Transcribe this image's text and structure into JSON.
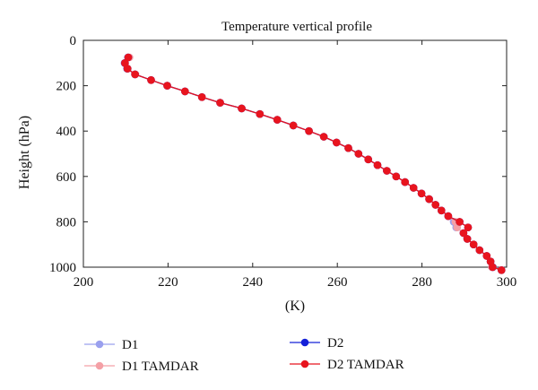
{
  "chart_data": {
    "type": "line",
    "title": "Temperature vertical profile",
    "xlabel": "(K)",
    "ylabel": "Height (hPa)",
    "xlim": [
      200,
      300
    ],
    "ylim": [
      0,
      1000
    ],
    "y_inverted": true,
    "xticks": [
      200,
      220,
      240,
      260,
      280,
      300
    ],
    "yticks": [
      0,
      200,
      400,
      600,
      800,
      1000
    ],
    "grid": false,
    "legend_position": "below",
    "series": [
      {
        "name": "D1",
        "color": "#9aa0ee",
        "marker": "circle",
        "points": [
          [
            210.5,
            75
          ],
          [
            209.7,
            100
          ],
          [
            210.3,
            125
          ],
          [
            212.2,
            150
          ],
          [
            216.0,
            175
          ],
          [
            219.8,
            200
          ],
          [
            224.0,
            225
          ],
          [
            228.0,
            250
          ],
          [
            232.3,
            275
          ],
          [
            237.4,
            300
          ],
          [
            241.7,
            325
          ],
          [
            245.8,
            350
          ],
          [
            249.6,
            375
          ],
          [
            253.3,
            400
          ],
          [
            256.8,
            425
          ],
          [
            259.8,
            450
          ],
          [
            262.6,
            475
          ],
          [
            265.0,
            500
          ],
          [
            267.3,
            525
          ],
          [
            269.5,
            550
          ],
          [
            271.7,
            575
          ],
          [
            273.9,
            600
          ],
          [
            276.0,
            625
          ],
          [
            278.0,
            650
          ],
          [
            279.9,
            675
          ],
          [
            281.7,
            700
          ],
          [
            283.2,
            725
          ],
          [
            284.6,
            750
          ],
          [
            286.2,
            775
          ],
          [
            287.5,
            800
          ],
          [
            288.1,
            825
          ],
          [
            289.8,
            850
          ],
          [
            290.7,
            875
          ],
          [
            292.2,
            900
          ],
          [
            293.6,
            925
          ],
          [
            295.3,
            950
          ],
          [
            296.2,
            975
          ],
          [
            296.8,
            1000
          ],
          [
            298.8,
            1013
          ]
        ]
      },
      {
        "name": "D1 TAMDAR",
        "color": "#f4a0a6",
        "marker": "circle",
        "points": [
          [
            210.9,
            75
          ],
          [
            209.9,
            100
          ],
          [
            210.5,
            125
          ],
          [
            212.3,
            150
          ],
          [
            216.0,
            175
          ],
          [
            219.8,
            200
          ],
          [
            224.0,
            225
          ],
          [
            228.0,
            250
          ],
          [
            232.3,
            275
          ],
          [
            237.4,
            300
          ],
          [
            241.7,
            325
          ],
          [
            245.8,
            350
          ],
          [
            249.6,
            375
          ],
          [
            253.3,
            400
          ],
          [
            256.8,
            425
          ],
          [
            259.8,
            450
          ],
          [
            262.6,
            475
          ],
          [
            265.0,
            500
          ],
          [
            267.3,
            525
          ],
          [
            269.5,
            550
          ],
          [
            271.7,
            575
          ],
          [
            273.9,
            600
          ],
          [
            276.0,
            625
          ],
          [
            278.0,
            650
          ],
          [
            279.9,
            675
          ],
          [
            281.7,
            700
          ],
          [
            283.2,
            725
          ],
          [
            284.6,
            750
          ],
          [
            286.2,
            775
          ],
          [
            287.9,
            800
          ],
          [
            288.3,
            825
          ],
          [
            289.8,
            850
          ],
          [
            290.7,
            875
          ],
          [
            292.2,
            900
          ],
          [
            293.6,
            925
          ],
          [
            295.3,
            950
          ],
          [
            296.2,
            975
          ],
          [
            296.5,
            1000
          ],
          [
            298.8,
            1013
          ]
        ]
      },
      {
        "name": "D2",
        "color": "#1420d8",
        "marker": "circle",
        "points": [
          [
            210.6,
            75
          ],
          [
            209.8,
            100
          ],
          [
            210.4,
            125
          ],
          [
            212.2,
            150
          ],
          [
            216.0,
            175
          ],
          [
            219.8,
            200
          ],
          [
            224.0,
            225
          ],
          [
            228.0,
            250
          ],
          [
            232.3,
            275
          ],
          [
            237.4,
            300
          ],
          [
            241.7,
            325
          ],
          [
            245.8,
            350
          ],
          [
            249.6,
            375
          ],
          [
            253.3,
            400
          ],
          [
            256.8,
            425
          ],
          [
            259.8,
            450
          ],
          [
            262.6,
            475
          ],
          [
            265.0,
            500
          ],
          [
            267.3,
            525
          ],
          [
            269.5,
            550
          ],
          [
            271.7,
            575
          ],
          [
            273.9,
            600
          ],
          [
            276.0,
            625
          ],
          [
            278.0,
            650
          ],
          [
            279.9,
            675
          ],
          [
            281.7,
            700
          ],
          [
            283.2,
            725
          ],
          [
            284.6,
            750
          ],
          [
            286.2,
            775
          ],
          [
            288.9,
            800
          ],
          [
            290.9,
            825
          ],
          [
            289.8,
            850
          ],
          [
            290.7,
            875
          ],
          [
            292.2,
            900
          ],
          [
            293.6,
            925
          ],
          [
            295.3,
            950
          ],
          [
            296.2,
            975
          ],
          [
            296.7,
            1000
          ],
          [
            298.8,
            1013
          ]
        ]
      },
      {
        "name": "D2 TAMDAR",
        "color": "#e8141e",
        "marker": "circle",
        "points": [
          [
            210.6,
            75
          ],
          [
            209.8,
            100
          ],
          [
            210.4,
            125
          ],
          [
            212.2,
            150
          ],
          [
            216.0,
            175
          ],
          [
            219.8,
            200
          ],
          [
            224.0,
            225
          ],
          [
            228.0,
            250
          ],
          [
            232.3,
            275
          ],
          [
            237.4,
            300
          ],
          [
            241.7,
            325
          ],
          [
            245.8,
            350
          ],
          [
            249.6,
            375
          ],
          [
            253.3,
            400
          ],
          [
            256.8,
            425
          ],
          [
            259.8,
            450
          ],
          [
            262.6,
            475
          ],
          [
            265.0,
            500
          ],
          [
            267.3,
            525
          ],
          [
            269.5,
            550
          ],
          [
            271.7,
            575
          ],
          [
            273.9,
            600
          ],
          [
            276.0,
            625
          ],
          [
            278.0,
            650
          ],
          [
            279.9,
            675
          ],
          [
            281.7,
            700
          ],
          [
            283.2,
            725
          ],
          [
            284.6,
            750
          ],
          [
            286.2,
            775
          ],
          [
            288.9,
            800
          ],
          [
            290.9,
            825
          ],
          [
            289.8,
            850
          ],
          [
            290.7,
            875
          ],
          [
            292.2,
            900
          ],
          [
            293.6,
            925
          ],
          [
            295.3,
            950
          ],
          [
            296.2,
            975
          ],
          [
            296.7,
            1000
          ],
          [
            298.8,
            1013
          ]
        ]
      }
    ]
  }
}
